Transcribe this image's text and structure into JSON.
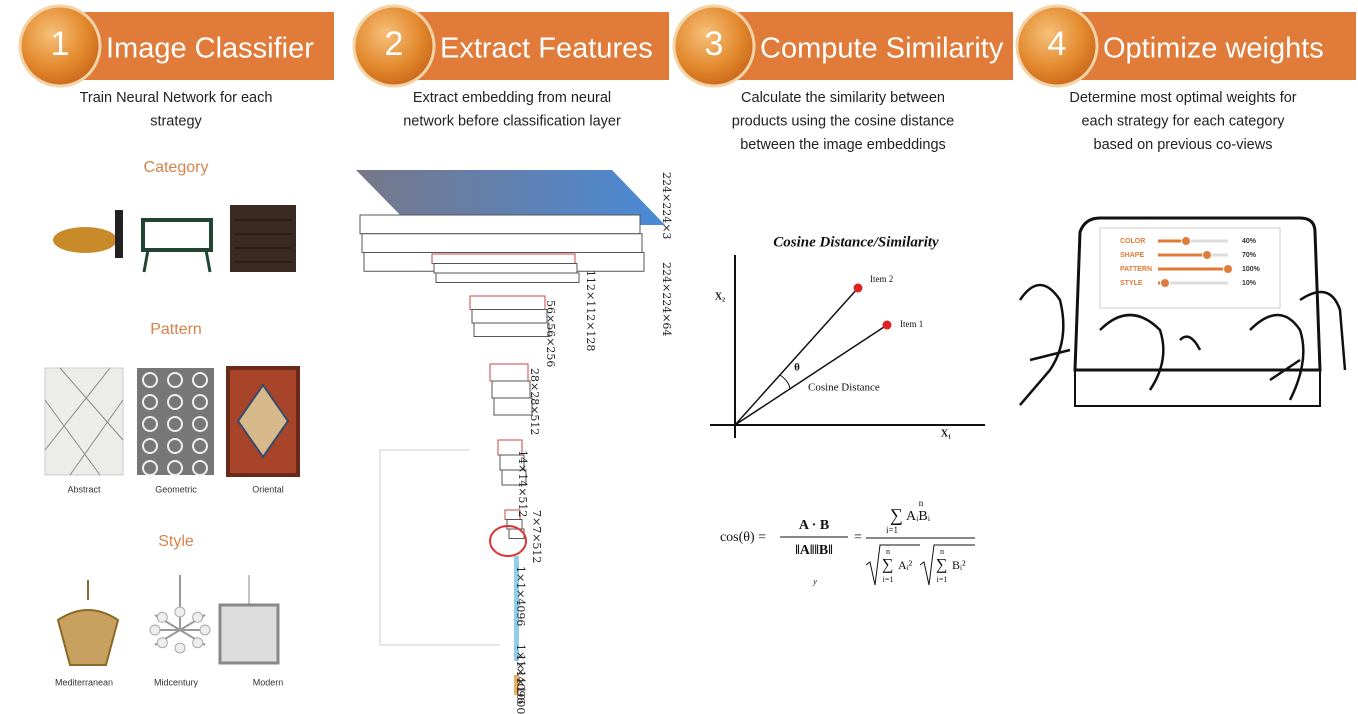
{
  "steps": [
    {
      "number": "1",
      "title": "Image Classifier",
      "description": [
        "Train Neural Network for each",
        "strategy"
      ]
    },
    {
      "number": "2",
      "title": "Extract Features",
      "description": [
        "Extract embedding  from neural",
        "network before classification layer"
      ]
    },
    {
      "number": "3",
      "title": "Compute Similarity",
      "description": [
        "Calculate the similarity between",
        "products using  the cosine distance",
        "between the image embeddings"
      ]
    },
    {
      "number": "4",
      "title": "Optimize weights",
      "description": [
        "Determine most optimal weights for",
        "each strategy for each category",
        "based on previous co-views"
      ]
    }
  ],
  "classifier": {
    "sections": [
      {
        "heading": "Category",
        "items": []
      },
      {
        "heading": "Pattern",
        "items": [
          "Abstract",
          "Geometric",
          "Oriental"
        ]
      },
      {
        "heading": "Style",
        "items": [
          "Mediterranean",
          "Midcentury",
          "Modern"
        ]
      }
    ]
  },
  "network": {
    "layers": [
      "224×224×3",
      "224×224×64",
      "112×112×128",
      "56×56×256",
      "28×28×512",
      "14×14×512",
      "7×7×512",
      "1×1×4096",
      "1×1×4096",
      "1×1×1000"
    ]
  },
  "similarity": {
    "plot_title": "Cosine Distance/Similarity",
    "y_axis": "X₂",
    "x_axis": "X₁",
    "item_2": "Item 2",
    "item_1": "Item 1",
    "angle": "θ",
    "distance_label": "Cosine Distance",
    "formula": {
      "lhs": "cos(θ) =",
      "numerator": "A · B",
      "denominator": "‖A‖‖B‖",
      "equals": "=",
      "sum_numerator": "AᵢBᵢ",
      "sum_a": "Aᵢ²",
      "sum_b": "Bᵢ²",
      "upper": "n",
      "lower": "i=1",
      "stray": "y"
    }
  },
  "weights": {
    "sliders": [
      {
        "label": "COLOR",
        "value": 40,
        "value_label": "40%"
      },
      {
        "label": "SHAPE",
        "value": 70,
        "value_label": "70%"
      },
      {
        "label": "PATTERN",
        "value": 100,
        "value_label": "100%"
      },
      {
        "label": "STYLE",
        "value": 10,
        "value_label": "10%"
      }
    ]
  }
}
